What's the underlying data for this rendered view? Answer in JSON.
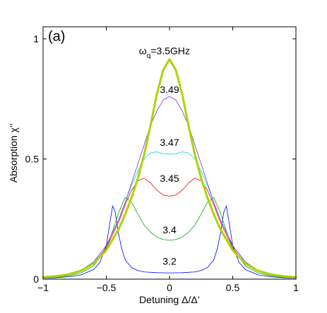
{
  "chart_data": {
    "type": "line",
    "panel_label": "(a)",
    "xlabel": "Detuning Δ/Δ’",
    "ylabel": "Absorption χ’’",
    "xlim": [
      -1,
      1
    ],
    "ylim": [
      0,
      1.05
    ],
    "xticks": [
      -1,
      -0.5,
      0,
      0.5,
      1
    ],
    "xtick_labels": [
      "−1",
      "−0.5",
      "0",
      "0.5",
      "1"
    ],
    "yticks": [
      0,
      0.5,
      1
    ],
    "ytick_labels": [
      "0",
      "0.5",
      "1"
    ],
    "grid": false,
    "legend": "none",
    "series": [
      {
        "color": "#0000ff",
        "stroke_width": 0.8,
        "x": [
          -1,
          -0.9,
          -0.8,
          -0.7,
          -0.6,
          -0.55,
          -0.5,
          -0.47,
          -0.45,
          -0.43,
          -0.41,
          -0.38,
          -0.35,
          -0.3,
          -0.25,
          -0.2,
          -0.1,
          0,
          0.1,
          0.2,
          0.25,
          0.3,
          0.35,
          0.38,
          0.41,
          0.43,
          0.45,
          0.47,
          0.5,
          0.55,
          0.6,
          0.7,
          0.8,
          0.9,
          1
        ],
        "y": [
          0.004,
          0.006,
          0.01,
          0.018,
          0.04,
          0.07,
          0.14,
          0.24,
          0.305,
          0.28,
          0.21,
          0.13,
          0.08,
          0.048,
          0.036,
          0.03,
          0.027,
          0.026,
          0.027,
          0.03,
          0.036,
          0.048,
          0.08,
          0.13,
          0.21,
          0.28,
          0.305,
          0.24,
          0.14,
          0.07,
          0.04,
          0.018,
          0.01,
          0.006,
          0.004
        ]
      },
      {
        "color": "#00aa00",
        "stroke_width": 0.8,
        "x": [
          -1,
          -0.9,
          -0.8,
          -0.7,
          -0.6,
          -0.5,
          -0.45,
          -0.4,
          -0.35,
          -0.3,
          -0.25,
          -0.2,
          -0.15,
          -0.1,
          -0.05,
          0,
          0.05,
          0.1,
          0.15,
          0.2,
          0.25,
          0.3,
          0.35,
          0.4,
          0.45,
          0.5,
          0.6,
          0.7,
          0.8,
          0.9,
          1
        ],
        "y": [
          0.005,
          0.008,
          0.014,
          0.026,
          0.055,
          0.13,
          0.2,
          0.28,
          0.34,
          0.32,
          0.27,
          0.225,
          0.195,
          0.175,
          0.165,
          0.162,
          0.165,
          0.175,
          0.195,
          0.225,
          0.27,
          0.32,
          0.34,
          0.28,
          0.2,
          0.13,
          0.055,
          0.026,
          0.014,
          0.008,
          0.005
        ]
      },
      {
        "color": "#ff0000",
        "stroke_width": 0.8,
        "x": [
          -1,
          -0.9,
          -0.8,
          -0.7,
          -0.6,
          -0.5,
          -0.4,
          -0.35,
          -0.3,
          -0.25,
          -0.2,
          -0.15,
          -0.1,
          -0.05,
          0,
          0.05,
          0.1,
          0.15,
          0.2,
          0.25,
          0.3,
          0.35,
          0.4,
          0.5,
          0.6,
          0.7,
          0.8,
          0.9,
          1
        ],
        "y": [
          0.006,
          0.01,
          0.017,
          0.032,
          0.065,
          0.13,
          0.24,
          0.31,
          0.37,
          0.41,
          0.42,
          0.4,
          0.37,
          0.35,
          0.345,
          0.35,
          0.37,
          0.4,
          0.42,
          0.41,
          0.37,
          0.31,
          0.24,
          0.13,
          0.065,
          0.032,
          0.017,
          0.01,
          0.006
        ]
      },
      {
        "color": "#00d8d8",
        "stroke_width": 0.8,
        "x": [
          -1,
          -0.9,
          -0.8,
          -0.7,
          -0.6,
          -0.5,
          -0.4,
          -0.35,
          -0.3,
          -0.25,
          -0.2,
          -0.15,
          -0.1,
          -0.05,
          0,
          0.05,
          0.1,
          0.15,
          0.2,
          0.25,
          0.3,
          0.35,
          0.4,
          0.5,
          0.6,
          0.7,
          0.8,
          0.9,
          1
        ],
        "y": [
          0.007,
          0.011,
          0.019,
          0.035,
          0.07,
          0.14,
          0.25,
          0.32,
          0.39,
          0.45,
          0.5,
          0.525,
          0.53,
          0.522,
          0.52,
          0.522,
          0.53,
          0.525,
          0.5,
          0.45,
          0.39,
          0.32,
          0.25,
          0.14,
          0.07,
          0.035,
          0.019,
          0.011,
          0.007
        ]
      },
      {
        "color": "#8a2be2",
        "stroke_width": 0.8,
        "x": [
          -1,
          -0.9,
          -0.8,
          -0.7,
          -0.6,
          -0.5,
          -0.4,
          -0.35,
          -0.3,
          -0.25,
          -0.2,
          -0.15,
          -0.1,
          -0.05,
          0,
          0.05,
          0.1,
          0.15,
          0.2,
          0.25,
          0.3,
          0.35,
          0.4,
          0.5,
          0.6,
          0.7,
          0.8,
          0.9,
          1
        ],
        "y": [
          0.008,
          0.012,
          0.02,
          0.037,
          0.072,
          0.14,
          0.25,
          0.32,
          0.4,
          0.48,
          0.56,
          0.64,
          0.7,
          0.745,
          0.76,
          0.745,
          0.7,
          0.64,
          0.56,
          0.48,
          0.4,
          0.32,
          0.25,
          0.14,
          0.072,
          0.037,
          0.02,
          0.012,
          0.008
        ]
      },
      {
        "color": "#aad400",
        "stroke_width": 3,
        "x": [
          -1,
          -0.9,
          -0.8,
          -0.7,
          -0.6,
          -0.5,
          -0.4,
          -0.35,
          -0.3,
          -0.25,
          -0.2,
          -0.15,
          -0.1,
          -0.05,
          0,
          0.05,
          0.1,
          0.15,
          0.2,
          0.25,
          0.3,
          0.35,
          0.4,
          0.5,
          0.6,
          0.7,
          0.8,
          0.9,
          1
        ],
        "y": [
          0.008,
          0.012,
          0.02,
          0.035,
          0.065,
          0.12,
          0.21,
          0.27,
          0.34,
          0.42,
          0.52,
          0.64,
          0.77,
          0.87,
          0.915,
          0.87,
          0.77,
          0.64,
          0.52,
          0.42,
          0.34,
          0.27,
          0.21,
          0.12,
          0.065,
          0.035,
          0.02,
          0.012,
          0.008
        ]
      }
    ],
    "annotations": [
      {
        "text": "3.49",
        "x": 0.0,
        "y": 0.775
      },
      {
        "text": "3.47",
        "x": 0.0,
        "y": 0.555
      },
      {
        "text": "3.45",
        "x": 0.0,
        "y": 0.405
      },
      {
        "text": "3.4",
        "x": 0.0,
        "y": 0.19
      },
      {
        "text": "3.2",
        "x": 0.0,
        "y": 0.06
      }
    ],
    "top_label": {
      "omega": "ω",
      "subscript": "q",
      "value": "=3.5GHz",
      "x": -0.04,
      "y": 0.935
    }
  }
}
